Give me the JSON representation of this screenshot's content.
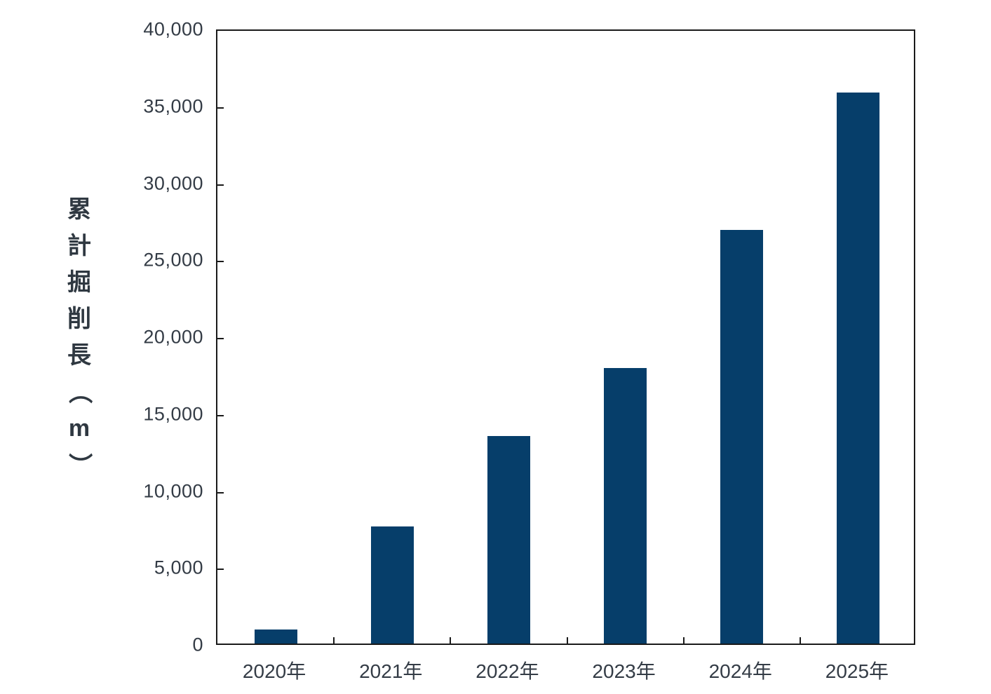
{
  "chart_data": {
    "type": "bar",
    "title": "",
    "categories": [
      "2020年",
      "2021年",
      "2022年",
      "2023年",
      "2024年",
      "2025年"
    ],
    "values": [
      900,
      7600,
      13500,
      17900,
      26900,
      35800
    ],
    "xlabel": "",
    "ylabel": "累計掘削長（m）",
    "ylim": [
      0,
      40000
    ],
    "ytick_step": 5000,
    "ytick_labels": [
      "0",
      "5,000",
      "10,000",
      "15,000",
      "20,000",
      "25,000",
      "30,000",
      "35,000",
      "40,000"
    ],
    "grid": false,
    "legend": "none",
    "colors": {
      "bar_fill": "#063e6a",
      "axis_line": "#1a1a1a",
      "tick_text": "#343c46",
      "axis_title_text": "#2f3841",
      "background": "#ffffff"
    }
  }
}
